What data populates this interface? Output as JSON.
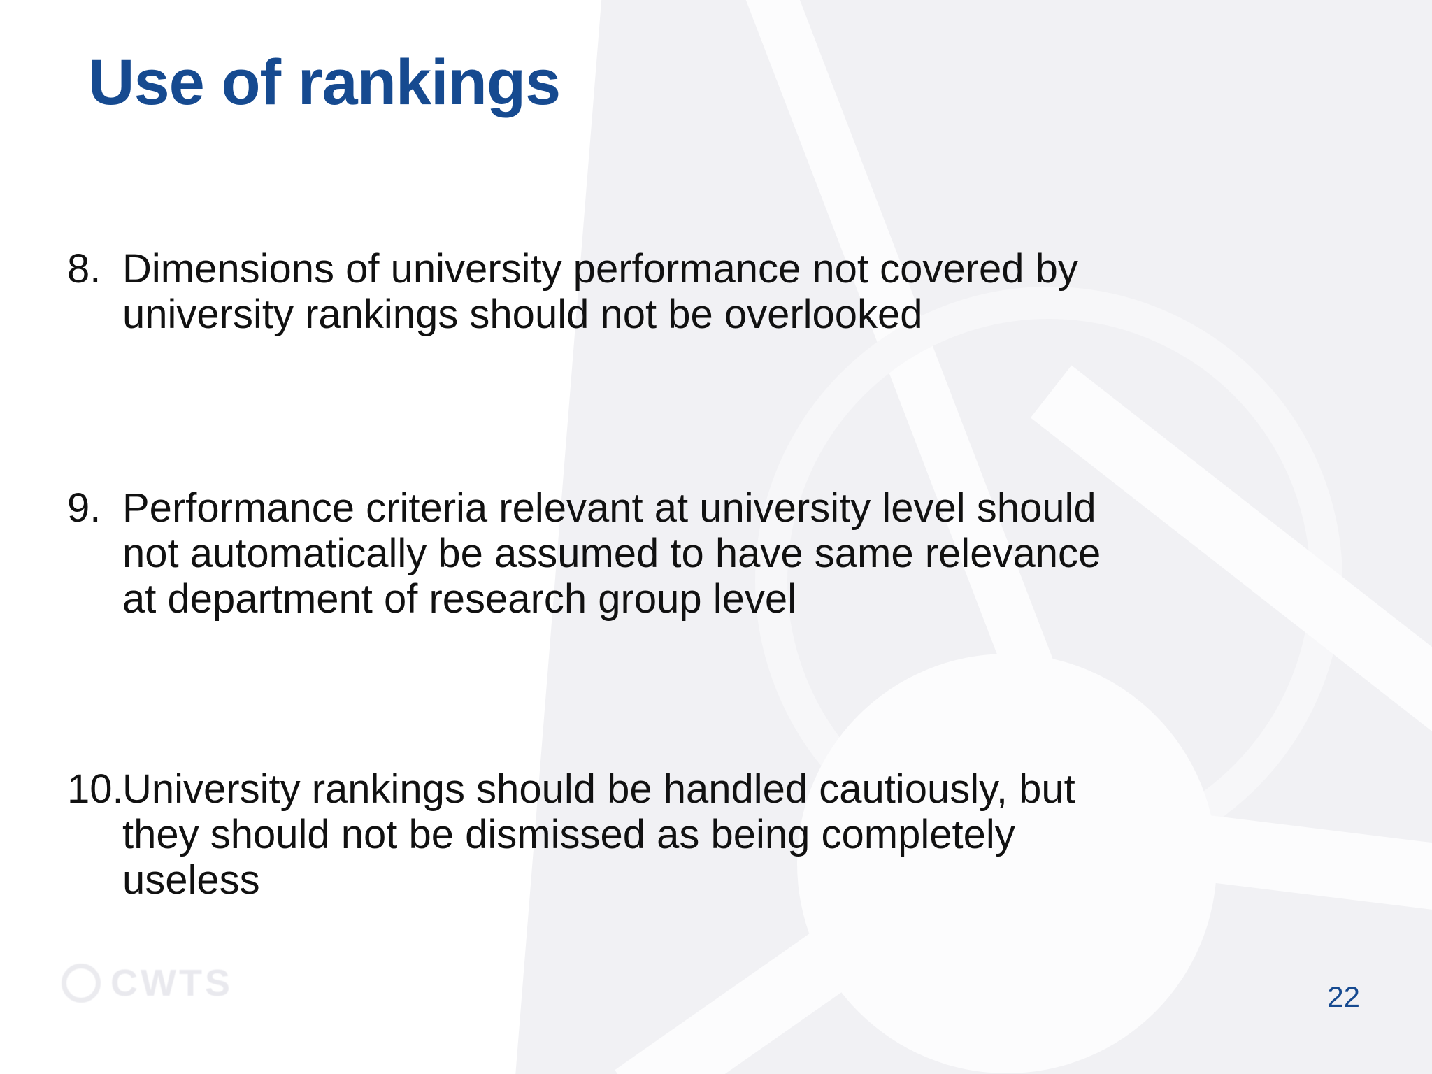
{
  "slide": {
    "title": "Use of rankings",
    "page_number": "22",
    "list": {
      "items": [
        {
          "marker": "8.",
          "lines": [
            "Dimensions of university performance not covered by",
            "university rankings should not be overlooked"
          ]
        },
        {
          "marker": "9.",
          "lines": [
            "Performance criteria relevant at university level should",
            "not automatically be assumed to have same relevance",
            "at department of research group level"
          ]
        },
        {
          "marker": "10.",
          "lines": [
            "University rankings should be handled cautiously, but",
            "they should not be dismissed as being completely",
            "useless"
          ]
        }
      ]
    },
    "logo": {
      "text": "CWTS"
    },
    "colors": {
      "accent_blue": "#164a90",
      "body_text": "#111111",
      "watermark_gray": "#f1f1f4"
    }
  }
}
